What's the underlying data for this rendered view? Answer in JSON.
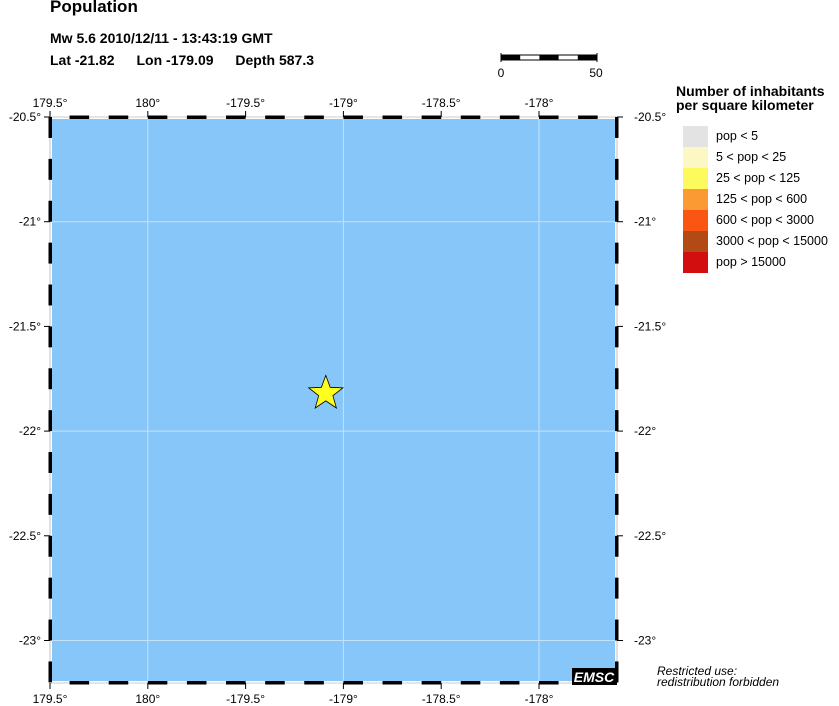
{
  "header": {
    "title": "Population",
    "event_line": "Mw 5.6  2010/12/11 - 13:43:19 GMT",
    "lat": "Lat -21.82",
    "lon": "Lon -179.09",
    "depth": "Depth 587.3"
  },
  "scale_bar": {
    "start_label": "0",
    "end_label": "50"
  },
  "map": {
    "ocean_color": "#87c6f8",
    "epicenter": {
      "lat": -21.82,
      "lon": -179.09,
      "marker": "star-icon",
      "color": "#ffff1e"
    },
    "lon_ticks": [
      "179.5°",
      "180°",
      "-179.5°",
      "-179°",
      "-178.5°",
      "-178°"
    ],
    "lat_ticks": [
      "-20.5°",
      "-21°",
      "-21.5°",
      "-22°",
      "-22.5°",
      "-23°"
    ],
    "logo": "EMSC"
  },
  "legend": {
    "title_line1": "Number of inhabitants",
    "title_line2": "per square kilometer",
    "items": [
      {
        "label": "pop < 5",
        "color": "#e3e3e3"
      },
      {
        "label": "5 < pop < 25",
        "color": "#fbf8c4"
      },
      {
        "label": "25 < pop < 125",
        "color": "#fcfa5c"
      },
      {
        "label": "125 < pop < 600",
        "color": "#fb9a32"
      },
      {
        "label": "600 < pop < 3000",
        "color": "#fb5514"
      },
      {
        "label": "3000 < pop < 15000",
        "color": "#b24a16"
      },
      {
        "label": "pop > 15000",
        "color": "#d20e0e"
      }
    ]
  },
  "notice": {
    "line1": "Restricted use:",
    "line2": "redistribution forbidden"
  }
}
